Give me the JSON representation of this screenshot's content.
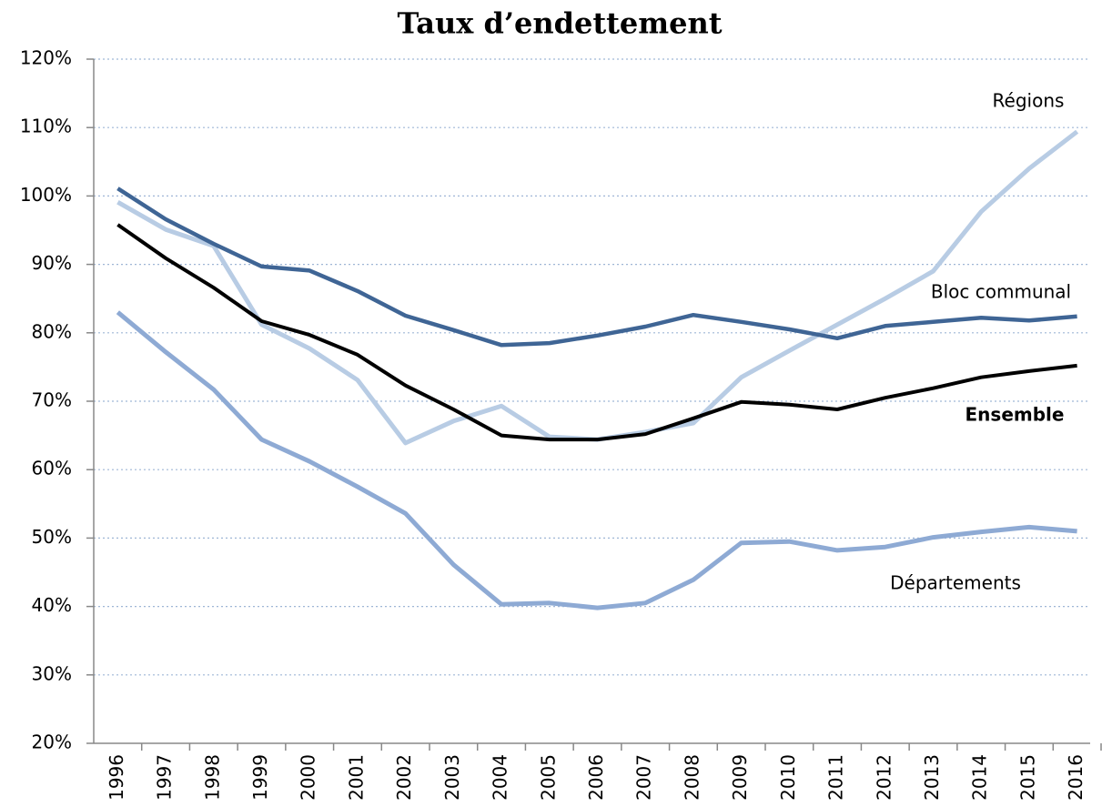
{
  "chart_data": {
    "type": "line",
    "title": "Taux d’endettement",
    "categories": [
      "1996",
      "1997",
      "1998",
      "1999",
      "2000",
      "2001",
      "2002",
      "2003",
      "2004",
      "2005",
      "2006",
      "2007",
      "2008",
      "2009",
      "2010",
      "2011",
      "2012",
      "2013",
      "2014",
      "2015",
      "2016"
    ],
    "series": [
      {
        "name": "Régions",
        "color": "#b8cce4",
        "values": [
          99.1,
          95.1,
          92.7,
          81.2,
          77.7,
          73.1,
          63.9,
          67.1,
          69.3,
          64.8,
          64.4,
          65.5,
          66.8,
          73.5,
          77.4,
          81.2,
          85.0,
          89.0,
          97.7,
          104.0,
          109.4
        ]
      },
      {
        "name": "Bloc communal",
        "color": "#3f6595",
        "values": [
          101.1,
          96.6,
          93.0,
          89.7,
          89.1,
          86.1,
          82.5,
          80.4,
          78.2,
          78.5,
          79.6,
          80.9,
          82.6,
          81.6,
          80.5,
          79.2,
          81.0,
          81.6,
          82.2,
          81.8,
          82.4
        ]
      },
      {
        "name": "Ensemble",
        "color": "#000000",
        "values": [
          95.8,
          90.9,
          86.6,
          81.7,
          79.7,
          76.8,
          72.3,
          68.8,
          65.0,
          64.4,
          64.4,
          65.2,
          67.5,
          69.9,
          69.5,
          68.8,
          70.5,
          71.9,
          73.5,
          74.4,
          75.2
        ]
      },
      {
        "name": "Départements",
        "color": "#8eaad4",
        "values": [
          83.0,
          77.2,
          71.7,
          64.4,
          61.2,
          57.5,
          53.6,
          46.1,
          40.3,
          40.5,
          39.8,
          40.5,
          43.9,
          49.3,
          49.5,
          48.2,
          48.7,
          50.1,
          50.9,
          51.6,
          51.0
        ]
      }
    ],
    "ylim": [
      20,
      120
    ],
    "yticks": [
      {
        "value": 20,
        "label": "20%"
      },
      {
        "value": 30,
        "label": "30%"
      },
      {
        "value": 40,
        "label": "40%"
      },
      {
        "value": 50,
        "label": "50%"
      },
      {
        "value": 60,
        "label": "60%"
      },
      {
        "value": 70,
        "label": "70%"
      },
      {
        "value": 80,
        "label": "80%"
      },
      {
        "value": 90,
        "label": "90%"
      },
      {
        "value": 100,
        "label": "100%"
      },
      {
        "value": 110,
        "label": "110%"
      },
      {
        "value": 120,
        "label": "120%"
      }
    ],
    "grid": true
  }
}
